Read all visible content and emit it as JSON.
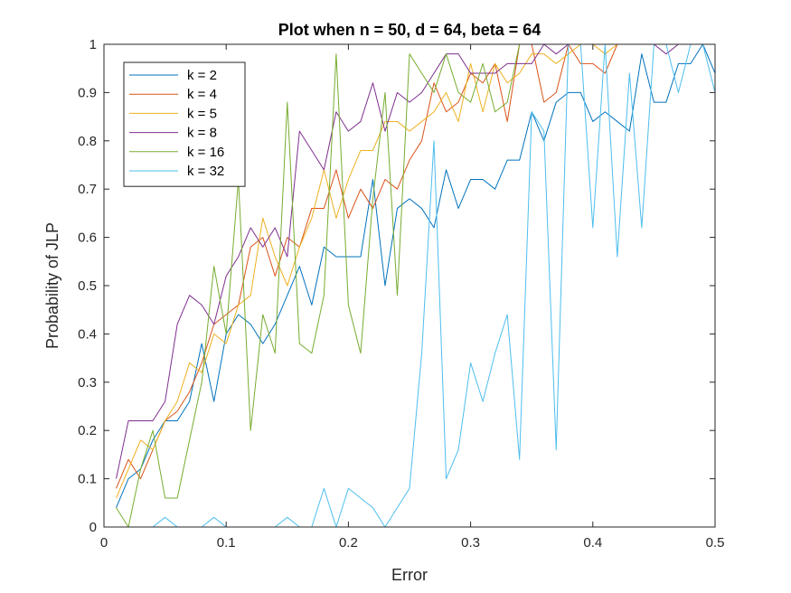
{
  "chart_data": {
    "type": "line",
    "title": "Plot when n = 50, d = 64, beta = 64",
    "xlabel": "Error",
    "ylabel": "Probability of JLP",
    "xlim": [
      0,
      0.5
    ],
    "ylim": [
      0,
      1
    ],
    "xticks": [
      0,
      0.1,
      0.2,
      0.3,
      0.4,
      0.5
    ],
    "xtick_labels": [
      "0",
      "0.1",
      "0.2",
      "0.3",
      "0.4",
      "0.5"
    ],
    "yticks": [
      0,
      0.1,
      0.2,
      0.3,
      0.4,
      0.5,
      0.6,
      0.7,
      0.8,
      0.9,
      1
    ],
    "ytick_labels": [
      "0",
      "0.1",
      "0.2",
      "0.3",
      "0.4",
      "0.5",
      "0.6",
      "0.7",
      "0.8",
      "0.9",
      "1"
    ],
    "grid": false,
    "legend_position": "top-left",
    "x": [
      0.01,
      0.02,
      0.03,
      0.04,
      0.05,
      0.06,
      0.07,
      0.08,
      0.09,
      0.1,
      0.11,
      0.12,
      0.13,
      0.14,
      0.15,
      0.16,
      0.17,
      0.18,
      0.19,
      0.2,
      0.21,
      0.22,
      0.23,
      0.24,
      0.25,
      0.26,
      0.27,
      0.28,
      0.29,
      0.3,
      0.31,
      0.32,
      0.33,
      0.34,
      0.35,
      0.36,
      0.37,
      0.38,
      0.39,
      0.4,
      0.41,
      0.42,
      0.43,
      0.44,
      0.45,
      0.46,
      0.47,
      0.48,
      0.49,
      0.5
    ],
    "series": [
      {
        "name": "k = 2",
        "color": "#0072BD",
        "values": [
          0.04,
          0.1,
          0.12,
          0.18,
          0.22,
          0.22,
          0.26,
          0.38,
          0.26,
          0.4,
          0.44,
          0.42,
          0.38,
          0.42,
          0.48,
          0.54,
          0.46,
          0.58,
          0.56,
          0.56,
          0.56,
          0.72,
          0.5,
          0.66,
          0.68,
          0.66,
          0.62,
          0.74,
          0.66,
          0.72,
          0.72,
          0.7,
          0.76,
          0.76,
          0.86,
          0.8,
          0.88,
          0.9,
          0.9,
          0.84,
          0.86,
          0.84,
          0.82,
          0.98,
          0.88,
          0.88,
          0.96,
          0.96,
          1.0,
          0.94
        ]
      },
      {
        "name": "k = 4",
        "color": "#D95319",
        "values": [
          0.08,
          0.14,
          0.1,
          0.16,
          0.22,
          0.24,
          0.28,
          0.34,
          0.42,
          0.44,
          0.46,
          0.58,
          0.6,
          0.52,
          0.6,
          0.58,
          0.66,
          0.66,
          0.74,
          0.64,
          0.7,
          0.66,
          0.72,
          0.7,
          0.76,
          0.8,
          0.92,
          0.86,
          0.88,
          0.94,
          0.92,
          0.96,
          0.84,
          1.0,
          1.0,
          0.88,
          0.9,
          1.0,
          0.96,
          0.96,
          0.94,
          1.0,
          1.0,
          1.0,
          1.0,
          1.0,
          1.0,
          1.0,
          1.0,
          1.0
        ]
      },
      {
        "name": "k = 5",
        "color": "#EDB120",
        "values": [
          0.06,
          0.12,
          0.18,
          0.16,
          0.22,
          0.26,
          0.34,
          0.32,
          0.4,
          0.38,
          0.46,
          0.48,
          0.64,
          0.56,
          0.5,
          0.58,
          0.64,
          0.74,
          0.64,
          0.72,
          0.78,
          0.78,
          0.84,
          0.84,
          0.82,
          0.84,
          0.86,
          0.9,
          0.84,
          0.96,
          0.86,
          0.96,
          0.92,
          0.94,
          0.98,
          0.98,
          0.96,
          0.98,
          1.0,
          1.0,
          0.98,
          1.0,
          1.0,
          1.0,
          1.0,
          1.0,
          1.0,
          1.0,
          1.0,
          1.0
        ]
      },
      {
        "name": "k = 8",
        "color": "#7E2F8E",
        "values": [
          0.1,
          0.22,
          0.22,
          0.22,
          0.26,
          0.42,
          0.48,
          0.46,
          0.42,
          0.52,
          0.56,
          0.62,
          0.58,
          0.62,
          0.56,
          0.82,
          0.78,
          0.74,
          0.86,
          0.82,
          0.84,
          0.92,
          0.82,
          0.9,
          0.88,
          0.9,
          0.94,
          0.98,
          0.98,
          0.94,
          0.94,
          0.94,
          0.96,
          0.96,
          0.96,
          1.0,
          0.98,
          1.0,
          1.0,
          1.0,
          1.0,
          1.0,
          1.0,
          1.0,
          1.0,
          0.98,
          1.0,
          1.0,
          1.0,
          1.0
        ]
      },
      {
        "name": "k = 16",
        "color": "#77AC30",
        "values": [
          0.04,
          0.0,
          0.12,
          0.2,
          0.06,
          0.06,
          0.18,
          0.3,
          0.54,
          0.4,
          0.72,
          0.2,
          0.44,
          0.36,
          0.88,
          0.38,
          0.36,
          0.48,
          0.98,
          0.46,
          0.36,
          0.68,
          0.9,
          0.48,
          0.98,
          0.94,
          0.9,
          0.98,
          0.9,
          0.88,
          0.96,
          0.86,
          0.88,
          1.0,
          1.0,
          1.0,
          1.0,
          1.0,
          1.0,
          1.0,
          1.0,
          1.0,
          1.0,
          1.0,
          1.0,
          1.0,
          1.0,
          1.0,
          1.0,
          1.0
        ]
      },
      {
        "name": "k = 32",
        "color": "#4DBEEE",
        "values": [
          0.0,
          0.0,
          0.0,
          0.0,
          0.02,
          0.0,
          0.0,
          0.0,
          0.02,
          0.0,
          0.0,
          0.0,
          0.0,
          0.0,
          0.02,
          0.0,
          0.0,
          0.08,
          0.0,
          0.08,
          0.06,
          0.04,
          0.0,
          0.04,
          0.08,
          0.36,
          0.8,
          0.1,
          0.16,
          0.34,
          0.26,
          0.36,
          0.44,
          0.14,
          0.86,
          0.82,
          0.16,
          1.0,
          1.0,
          0.62,
          1.0,
          0.56,
          0.94,
          0.62,
          1.0,
          1.0,
          0.9,
          1.0,
          1.0,
          0.9
        ]
      }
    ]
  }
}
